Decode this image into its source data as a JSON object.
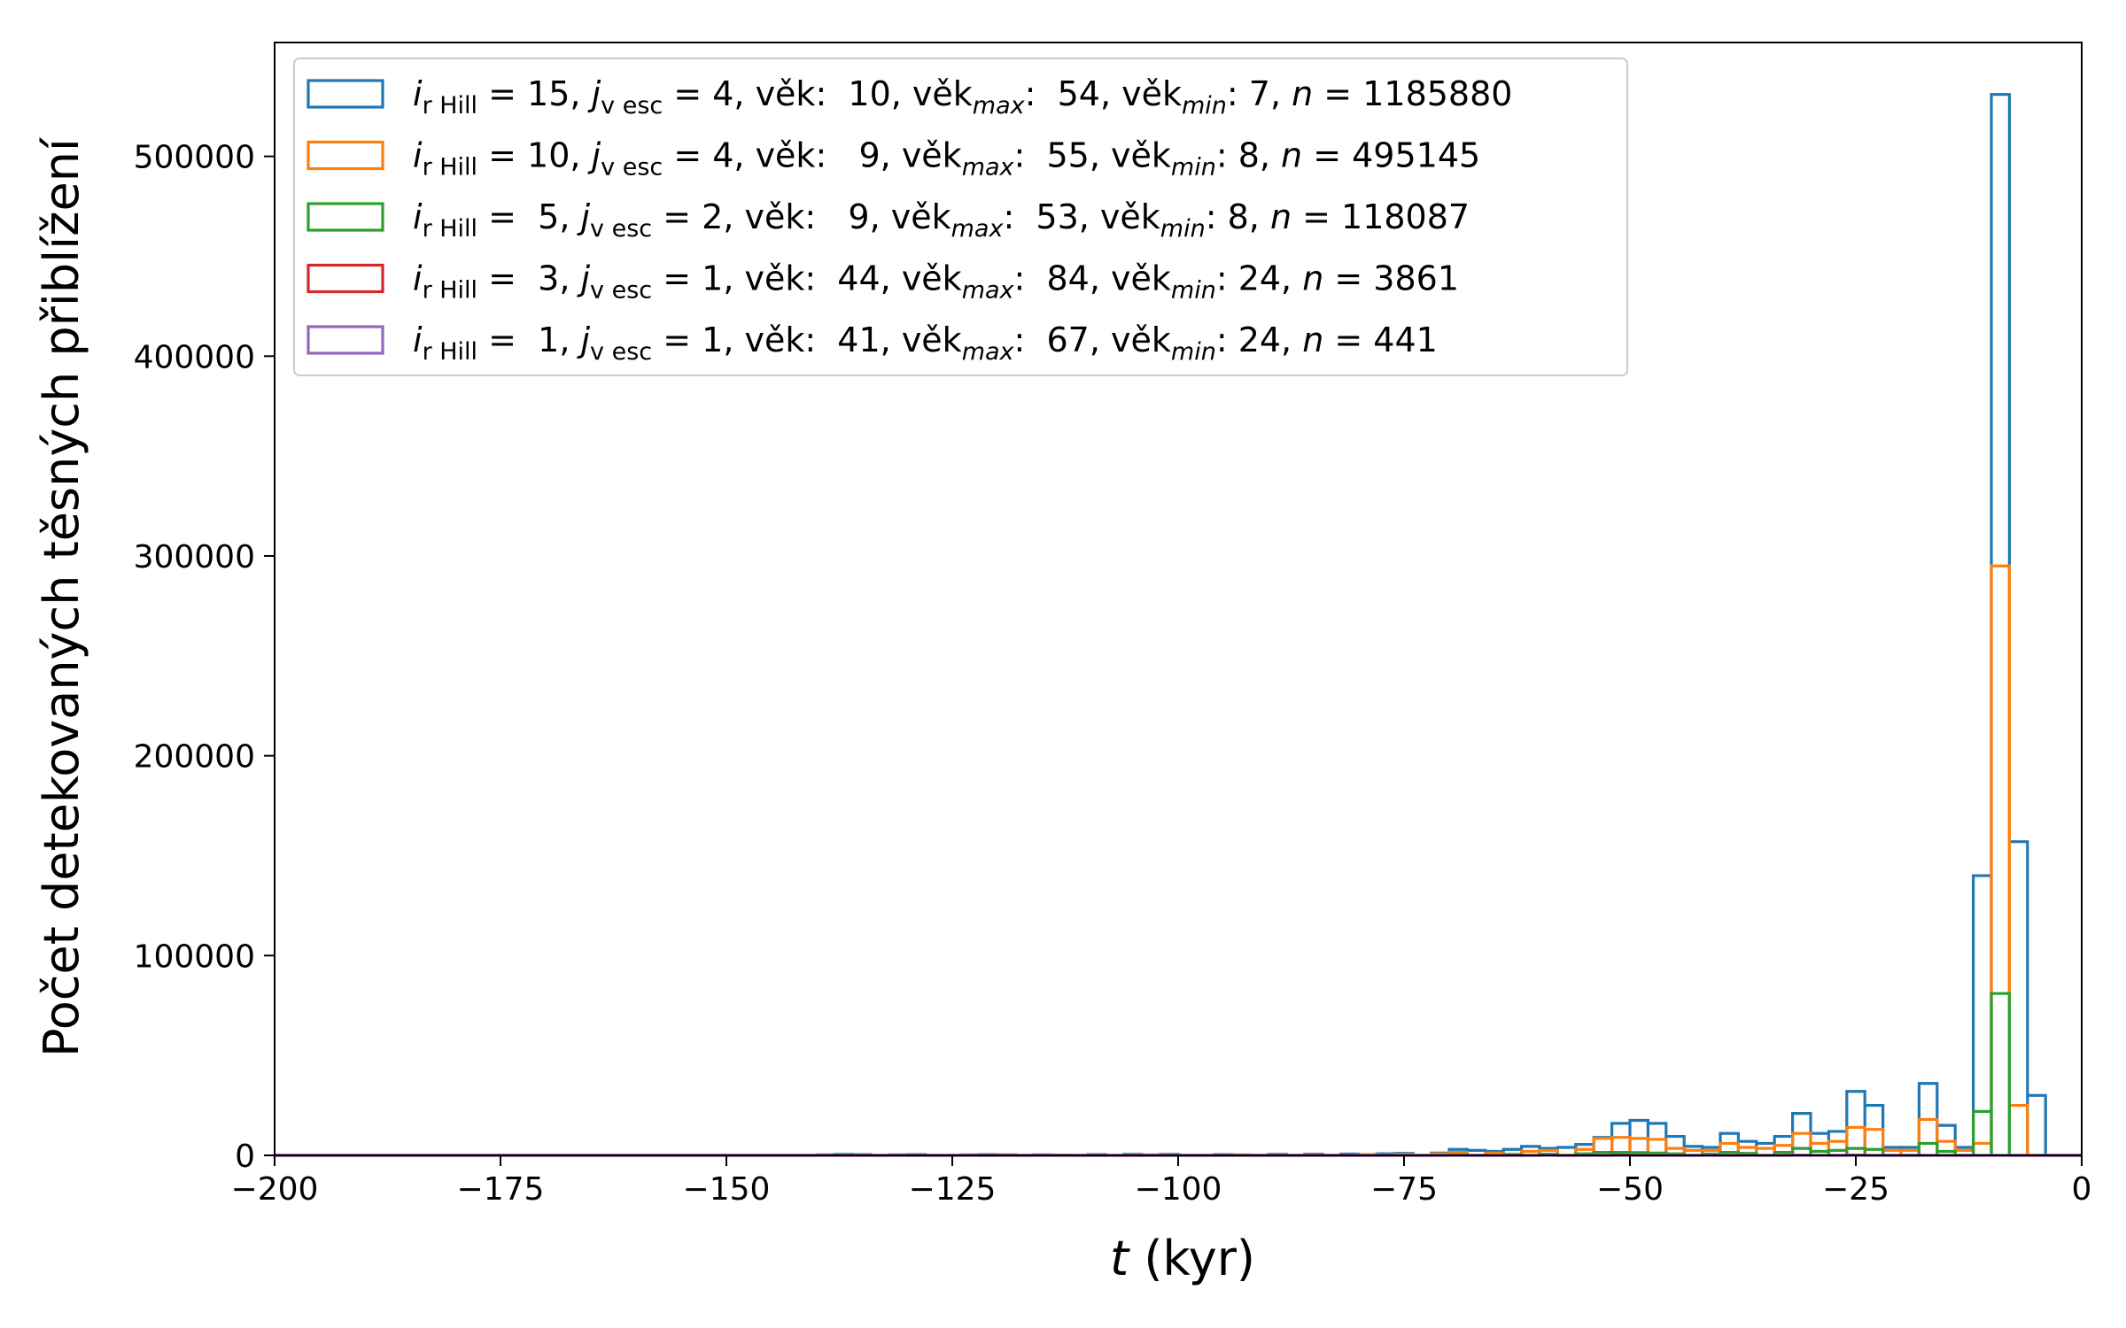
{
  "chart_data": {
    "type": "histogram-step",
    "xlabel_var": "t",
    "xlabel_unit": " (kyr)",
    "ylabel": "Počet detekovaných těsných přiblížení",
    "xlim": [
      -200,
      0
    ],
    "ylim": [
      0,
      557000
    ],
    "xticks": [
      -200,
      -175,
      -150,
      -125,
      -100,
      -75,
      -50,
      -25,
      0
    ],
    "xtick_labels": [
      "−200",
      "−175",
      "−150",
      "−125",
      "−100",
      "−75",
      "−50",
      "−25",
      "0"
    ],
    "yticks": [
      0,
      100000,
      200000,
      300000,
      400000,
      500000
    ],
    "ytick_labels": [
      "0",
      "100000",
      "200000",
      "300000",
      "400000",
      "500000"
    ],
    "bin_width": 2,
    "legend_position": "top-left",
    "series": [
      {
        "color": "#1f77b4",
        "legend": {
          "ir": "15",
          "jv": "4",
          "vek": "10",
          "vekmax": "54",
          "vekmin": "7",
          "n": "1185880"
        },
        "bins": [
          [
            -140,
            300
          ],
          [
            -138,
            500
          ],
          [
            -136,
            400
          ],
          [
            -132,
            300
          ],
          [
            -130,
            400
          ],
          [
            -124,
            300
          ],
          [
            -122,
            400
          ],
          [
            -120,
            300
          ],
          [
            -116,
            300
          ],
          [
            -110,
            400
          ],
          [
            -106,
            500
          ],
          [
            -102,
            500
          ],
          [
            -96,
            400
          ],
          [
            -90,
            500
          ],
          [
            -86,
            600
          ],
          [
            -82,
            700
          ],
          [
            -78,
            800
          ],
          [
            -76,
            1000
          ],
          [
            -72,
            1200
          ],
          [
            -70,
            3000
          ],
          [
            -68,
            2500
          ],
          [
            -66,
            2000
          ],
          [
            -64,
            3000
          ],
          [
            -62,
            4500
          ],
          [
            -60,
            3500
          ],
          [
            -58,
            4000
          ],
          [
            -56,
            5500
          ],
          [
            -54,
            9000
          ],
          [
            -52,
            16000
          ],
          [
            -50,
            17500
          ],
          [
            -48,
            16000
          ],
          [
            -46,
            9500
          ],
          [
            -44,
            4500
          ],
          [
            -42,
            4000
          ],
          [
            -40,
            11000
          ],
          [
            -38,
            7000
          ],
          [
            -36,
            6000
          ],
          [
            -34,
            9500
          ],
          [
            -32,
            21000
          ],
          [
            -30,
            11000
          ],
          [
            -28,
            12000
          ],
          [
            -26,
            32000
          ],
          [
            -24,
            25000
          ],
          [
            -22,
            4000
          ],
          [
            -20,
            4000
          ],
          [
            -18,
            36000
          ],
          [
            -16,
            15000
          ],
          [
            -14,
            4000
          ],
          [
            -12,
            140000
          ],
          [
            -10,
            531000
          ],
          [
            -8,
            157000
          ],
          [
            -6,
            30000
          ]
        ]
      },
      {
        "color": "#ff7f0e",
        "legend": {
          "ir": "10",
          "jv": "4",
          "vek": "9",
          "vekmax": "55",
          "vekmin": "8",
          "n": "495145"
        },
        "bins": [
          [
            -124,
            200
          ],
          [
            -120,
            300
          ],
          [
            -114,
            200
          ],
          [
            -104,
            300
          ],
          [
            -94,
            300
          ],
          [
            -86,
            300
          ],
          [
            -80,
            400
          ],
          [
            -76,
            500
          ],
          [
            -72,
            800
          ],
          [
            -70,
            1500
          ],
          [
            -66,
            1200
          ],
          [
            -62,
            2000
          ],
          [
            -60,
            2500
          ],
          [
            -56,
            3000
          ],
          [
            -54,
            8500
          ],
          [
            -52,
            9000
          ],
          [
            -50,
            8500
          ],
          [
            -48,
            8000
          ],
          [
            -46,
            3500
          ],
          [
            -44,
            2500
          ],
          [
            -42,
            2500
          ],
          [
            -40,
            6000
          ],
          [
            -38,
            4000
          ],
          [
            -36,
            3500
          ],
          [
            -34,
            5000
          ],
          [
            -32,
            11000
          ],
          [
            -30,
            6000
          ],
          [
            -28,
            7000
          ],
          [
            -26,
            14000
          ],
          [
            -24,
            13000
          ],
          [
            -22,
            2500
          ],
          [
            -20,
            2500
          ],
          [
            -18,
            18000
          ],
          [
            -16,
            7000
          ],
          [
            -14,
            2500
          ],
          [
            -12,
            6000
          ],
          [
            -10,
            295000
          ],
          [
            -8,
            25000
          ]
        ]
      },
      {
        "color": "#2ca02c",
        "legend": {
          "ir": "5",
          "jv": "2",
          "vek": "9",
          "vekmax": "53",
          "vekmin": "8",
          "n": "118087"
        },
        "bins": [
          [
            -70,
            300
          ],
          [
            -64,
            500
          ],
          [
            -60,
            600
          ],
          [
            -56,
            800
          ],
          [
            -54,
            1500
          ],
          [
            -52,
            1500
          ],
          [
            -50,
            1400
          ],
          [
            -48,
            1200
          ],
          [
            -46,
            800
          ],
          [
            -42,
            700
          ],
          [
            -40,
            1500
          ],
          [
            -38,
            1000
          ],
          [
            -34,
            1500
          ],
          [
            -32,
            3500
          ],
          [
            -30,
            2000
          ],
          [
            -28,
            2500
          ],
          [
            -26,
            3500
          ],
          [
            -24,
            3000
          ],
          [
            -18,
            6000
          ],
          [
            -16,
            2000
          ],
          [
            -12,
            22000
          ],
          [
            -10,
            81000
          ]
        ]
      },
      {
        "color": "#d62728",
        "legend": {
          "ir": "3",
          "jv": "1",
          "vek": "44",
          "vekmax": "84",
          "vekmin": "24",
          "n": "3861"
        },
        "bins": [
          [
            -60,
            100
          ],
          [
            -52,
            150
          ],
          [
            -32,
            100
          ],
          [
            -26,
            150
          ]
        ]
      },
      {
        "color": "#9467bd",
        "legend": {
          "ir": "1",
          "jv": "1",
          "vek": "41",
          "vekmax": "67",
          "vekmin": "24",
          "n": "441"
        },
        "bins": [
          [
            -50,
            20
          ],
          [
            -30,
            20
          ]
        ]
      }
    ]
  },
  "legend_template": {
    "eq": " = ",
    "i": "i",
    "r_hill_sub": "r Hill",
    "j": "j",
    "v_esc_sub": "v esc",
    "vek_word": "věk:",
    "vek_max_word": "věk",
    "max_sub": "max",
    "min_sub": "min",
    "colon": ":",
    "n_var": "n"
  }
}
